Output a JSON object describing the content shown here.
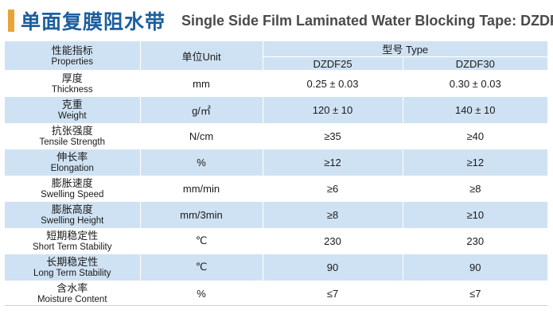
{
  "header": {
    "title_cn": "单面复膜阻水带",
    "title_en": "Single Side Film Laminated Water Blocking Tape: DZDF"
  },
  "table": {
    "col_properties": {
      "cn": "性能指标",
      "en": "Properties"
    },
    "col_unit": "单位Unit",
    "col_type": "型号 Type",
    "models": [
      "DZDF25",
      "DZDF30"
    ],
    "rows": [
      {
        "cn": "厚度",
        "en": "Thickness",
        "unit": "mm",
        "v1": "0.25 ± 0.03",
        "v2": "0.30 ± 0.03"
      },
      {
        "cn": "克重",
        "en": "Weight",
        "unit": "g/㎡",
        "v1": "120 ± 10",
        "v2": "140 ± 10"
      },
      {
        "cn": "抗张强度",
        "en": "Tensile Strength",
        "unit": "N/cm",
        "v1": "≥35",
        "v2": "≥40"
      },
      {
        "cn": "伸长率",
        "en": "Elongation",
        "unit": "%",
        "v1": "≥12",
        "v2": "≥12"
      },
      {
        "cn": "膨胀速度",
        "en": "Swelling Speed",
        "unit": "mm/min",
        "v1": "≥6",
        "v2": "≥8"
      },
      {
        "cn": "膨胀高度",
        "en": "Swelling Height",
        "unit": "mm/3min",
        "v1": "≥8",
        "v2": "≥10"
      },
      {
        "cn": "短期稳定性",
        "en": "Short Term Stability",
        "unit": "℃",
        "v1": "230",
        "v2": "230"
      },
      {
        "cn": "长期稳定性",
        "en": "Long Term Stability",
        "unit": "℃",
        "v1": "90",
        "v2": "90"
      },
      {
        "cn": "含水率",
        "en": "Moisture Content",
        "unit": "%",
        "v1": "≤7",
        "v2": "≤7"
      }
    ]
  },
  "colors": {
    "accent": "#e8a33a",
    "title_blue": "#1d5f9e",
    "row_fill": "#cfe2f3"
  }
}
